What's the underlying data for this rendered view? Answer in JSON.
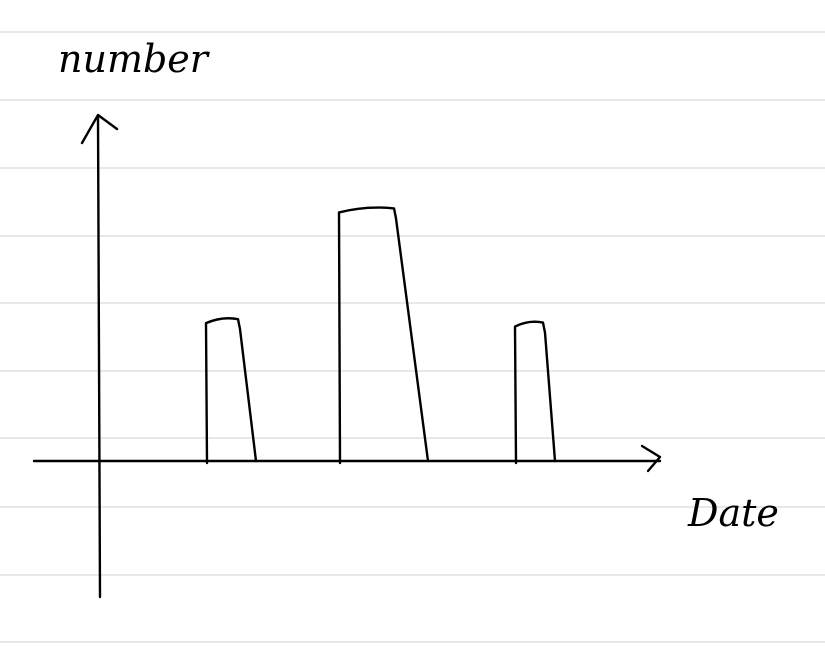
{
  "paper": {
    "background": "#ffffff",
    "rule_color": "#d9d9d9",
    "ink_color": "#000000"
  },
  "chart_data": {
    "type": "bar",
    "title": "",
    "ylabel": "number",
    "xlabel": "Date",
    "categories": [
      "",
      "",
      ""
    ],
    "values": [
      4.1,
      7.3,
      4.0
    ],
    "ylim": [
      0,
      10
    ],
    "grid": false,
    "legend": "none",
    "hand_drawn": true
  }
}
